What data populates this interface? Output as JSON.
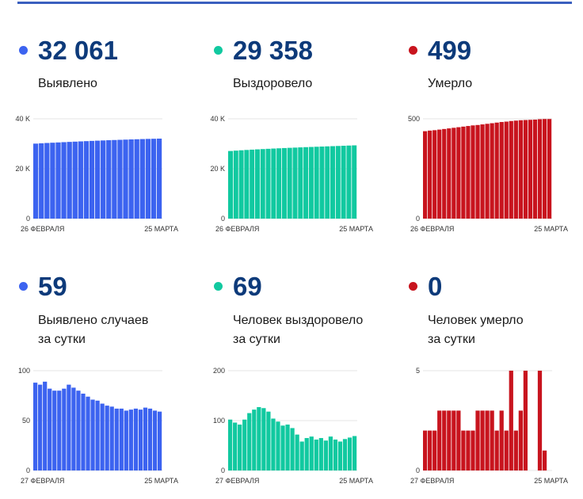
{
  "colors": {
    "accent": "#3a5fbf",
    "blue": "#3c63f0",
    "green": "#11c9a0",
    "red": "#c8141e"
  },
  "cards": [
    {
      "value": "32 061",
      "label_lines": [
        "Выявлено"
      ],
      "color": "#3c63f0"
    },
    {
      "value": "29 358",
      "label_lines": [
        "Выздоровело"
      ],
      "color": "#11c9a0"
    },
    {
      "value": "499",
      "label_lines": [
        "Умерло"
      ],
      "color": "#c8141e"
    },
    {
      "value": "59",
      "label_lines": [
        "Выявлено случаев",
        "за сутки"
      ],
      "color": "#3c63f0"
    },
    {
      "value": "69",
      "label_lines": [
        "Человек выздоровело",
        "за сутки"
      ],
      "color": "#11c9a0"
    },
    {
      "value": "0",
      "label_lines": [
        "Человек умерло",
        "за сутки"
      ],
      "color": "#c8141e"
    }
  ],
  "chart_data": [
    {
      "type": "bar",
      "color": "#3c63f0",
      "x_start_label": "26 ФЕВРАЛЯ",
      "x_end_label": "25 МАРТА",
      "yticks": [
        {
          "value": 0,
          "label": "0"
        },
        {
          "value": 20000,
          "label": "20 K"
        },
        {
          "value": 40000,
          "label": "40 K"
        }
      ],
      "ylim": [
        0,
        40000
      ],
      "values": [
        30058,
        30190,
        30310,
        30420,
        30530,
        30640,
        30750,
        30850,
        30950,
        31050,
        31150,
        31240,
        31330,
        31420,
        31500,
        31580,
        31660,
        31740,
        31810,
        31880,
        31950,
        32002,
        32061
      ]
    },
    {
      "type": "bar",
      "color": "#11c9a0",
      "x_start_label": "26 ФЕВРАЛЯ",
      "x_end_label": "25 МАРТА",
      "yticks": [
        {
          "value": 0,
          "label": "0"
        },
        {
          "value": 20000,
          "label": "20 K"
        },
        {
          "value": 40000,
          "label": "40 K"
        }
      ],
      "ylim": [
        0,
        40000
      ],
      "values": [
        27100,
        27250,
        27390,
        27520,
        27640,
        27760,
        27870,
        27980,
        28080,
        28180,
        28280,
        28370,
        28460,
        28550,
        28640,
        28720,
        28800,
        28880,
        28960,
        29040,
        29120,
        29200,
        29280,
        29358
      ]
    },
    {
      "type": "bar",
      "color": "#c8141e",
      "x_start_label": "26 ФЕВРАЛЯ",
      "x_end_label": "25 МАРТА",
      "yticks": [
        {
          "value": 0,
          "label": "0"
        },
        {
          "value": 500,
          "label": "500"
        }
      ],
      "ylim": [
        0,
        500
      ],
      "values": [
        438,
        441,
        443,
        446,
        449,
        452,
        455,
        458,
        461,
        464,
        467,
        469,
        472,
        475,
        478,
        481,
        484,
        486,
        489,
        491,
        493,
        494,
        495,
        496,
        498,
        499,
        499
      ]
    },
    {
      "type": "bar",
      "color": "#3c63f0",
      "x_start_label": "27 ФЕВРАЛЯ",
      "x_end_label": "25 МАРТА",
      "yticks": [
        {
          "value": 0,
          "label": "0"
        },
        {
          "value": 50,
          "label": "50"
        },
        {
          "value": 100,
          "label": "100"
        }
      ],
      "ylim": [
        0,
        100
      ],
      "values": [
        88,
        86,
        89,
        82,
        80,
        80,
        82,
        86,
        83,
        80,
        77,
        74,
        71,
        70,
        67,
        65,
        64,
        62,
        62,
        60,
        61,
        62,
        61,
        63,
        62,
        60,
        59
      ]
    },
    {
      "type": "bar",
      "color": "#11c9a0",
      "x_start_label": "27 ФЕВРАЛЯ",
      "x_end_label": "25 МАРТА",
      "yticks": [
        {
          "value": 0,
          "label": "0"
        },
        {
          "value": 100,
          "label": "100"
        },
        {
          "value": 200,
          "label": "200"
        }
      ],
      "ylim": [
        0,
        200
      ],
      "values": [
        102,
        96,
        92,
        102,
        115,
        122,
        127,
        125,
        118,
        104,
        98,
        90,
        92,
        85,
        72,
        58,
        65,
        68,
        62,
        65,
        60,
        68,
        62,
        58,
        63,
        66,
        69
      ]
    },
    {
      "type": "bar",
      "color": "#c8141e",
      "x_start_label": "27 ФЕВРАЛЯ",
      "x_end_label": "25 МАРТА",
      "yticks": [
        {
          "value": 0,
          "label": "0"
        },
        {
          "value": 5,
          "label": "5"
        }
      ],
      "ylim": [
        0,
        5
      ],
      "values": [
        2,
        2,
        2,
        3,
        3,
        3,
        3,
        3,
        2,
        2,
        2,
        3,
        3,
        3,
        3,
        2,
        3,
        2,
        5,
        2,
        3,
        5,
        0,
        0,
        5,
        1,
        0
      ]
    }
  ]
}
